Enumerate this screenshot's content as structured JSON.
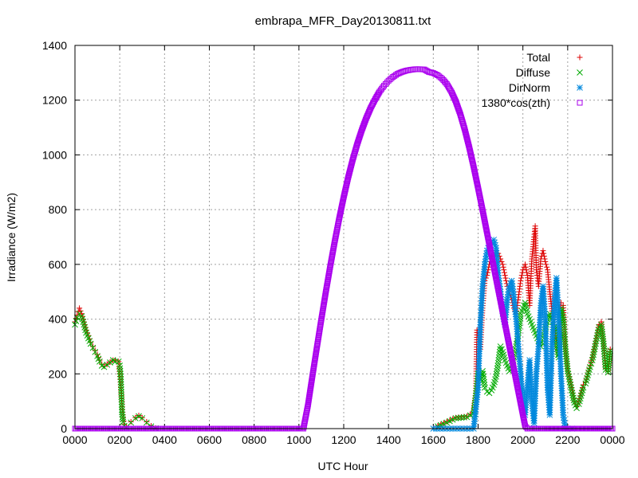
{
  "chart_data": {
    "type": "scatter",
    "title": "embrapa_MFR_Day20130811.txt",
    "xlabel": "UTC Hour",
    "ylabel": "Irradiance (W/m2)",
    "xlim": [
      0,
      24
    ],
    "ylim": [
      0,
      1400
    ],
    "x_ticks": [
      0,
      2,
      4,
      6,
      8,
      10,
      12,
      14,
      16,
      18,
      20,
      22,
      24
    ],
    "x_tick_labels": [
      "0000",
      "0200",
      "0400",
      "0600",
      "0800",
      "1000",
      "1200",
      "1400",
      "1600",
      "1800",
      "2000",
      "2200",
      "0000"
    ],
    "y_ticks": [
      0,
      200,
      400,
      600,
      800,
      1000,
      1200,
      1400
    ],
    "y_tick_labels": [
      "0",
      "200",
      "400",
      "600",
      "800",
      "1000",
      "1200",
      "1400"
    ],
    "grid": true,
    "legend_position": "top-right",
    "series": [
      {
        "name": "Total",
        "color": "#dd0000",
        "marker": "plus",
        "points": [
          [
            0.0,
            390
          ],
          [
            0.1,
            415
          ],
          [
            0.2,
            440
          ],
          [
            0.3,
            420
          ],
          [
            0.4,
            390
          ],
          [
            0.5,
            360
          ],
          [
            0.6,
            340
          ],
          [
            0.7,
            315
          ],
          [
            0.8,
            300
          ],
          [
            0.9,
            285
          ],
          [
            1.0,
            270
          ],
          [
            1.1,
            250
          ],
          [
            1.2,
            235
          ],
          [
            1.3,
            228
          ],
          [
            1.7,
            250
          ],
          [
            1.8,
            250
          ],
          [
            1.95,
            245
          ],
          [
            2.0,
            200
          ],
          [
            2.05,
            150
          ],
          [
            2.1,
            90
          ],
          [
            2.15,
            40
          ],
          [
            2.2,
            15
          ],
          [
            2.3,
            8
          ],
          [
            2.5,
            25
          ],
          [
            2.7,
            40
          ],
          [
            2.85,
            48
          ],
          [
            3.0,
            40
          ],
          [
            3.2,
            25
          ],
          [
            3.4,
            10
          ],
          [
            3.6,
            2
          ],
          [
            16.2,
            10
          ],
          [
            16.6,
            25
          ],
          [
            17.0,
            40
          ],
          [
            17.5,
            45
          ],
          [
            17.8,
            60
          ],
          [
            17.9,
            130
          ],
          [
            17.95,
            360
          ],
          [
            18.1,
            290
          ],
          [
            18.2,
            440
          ],
          [
            18.3,
            540
          ],
          [
            18.4,
            560
          ],
          [
            18.5,
            600
          ],
          [
            18.6,
            630
          ],
          [
            18.7,
            610
          ],
          [
            18.8,
            650
          ],
          [
            18.9,
            640
          ],
          [
            19.0,
            620
          ],
          [
            19.1,
            600
          ],
          [
            19.2,
            560
          ],
          [
            19.3,
            520
          ],
          [
            19.4,
            500
          ],
          [
            19.5,
            470
          ],
          [
            19.6,
            440
          ],
          [
            19.7,
            420
          ],
          [
            19.8,
            480
          ],
          [
            19.9,
            540
          ],
          [
            20.0,
            580
          ],
          [
            20.1,
            600
          ],
          [
            20.2,
            560
          ],
          [
            20.3,
            450
          ],
          [
            20.4,
            620
          ],
          [
            20.5,
            700
          ],
          [
            20.55,
            740
          ],
          [
            20.6,
            580
          ],
          [
            20.7,
            520
          ],
          [
            20.8,
            620
          ],
          [
            20.9,
            650
          ],
          [
            21.0,
            610
          ],
          [
            21.1,
            580
          ],
          [
            21.2,
            500
          ],
          [
            21.3,
            430
          ],
          [
            21.4,
            380
          ],
          [
            21.5,
            320
          ],
          [
            21.6,
            270
          ],
          [
            21.7,
            460
          ],
          [
            21.8,
            450
          ],
          [
            21.9,
            300
          ],
          [
            22.0,
            220
          ],
          [
            22.1,
            180
          ],
          [
            22.2,
            140
          ],
          [
            22.3,
            100
          ],
          [
            22.4,
            80
          ],
          [
            22.5,
            100
          ],
          [
            22.6,
            130
          ],
          [
            22.7,
            160
          ],
          [
            22.8,
            170
          ],
          [
            22.9,
            200
          ],
          [
            23.0,
            230
          ],
          [
            23.1,
            260
          ],
          [
            23.2,
            300
          ],
          [
            23.3,
            340
          ],
          [
            23.4,
            380
          ],
          [
            23.5,
            390
          ],
          [
            23.6,
            320
          ],
          [
            23.7,
            220
          ],
          [
            23.8,
            210
          ],
          [
            23.9,
            290
          ]
        ]
      },
      {
        "name": "Diffuse",
        "color": "#00aa00",
        "marker": "cross",
        "points": [
          [
            0.0,
            380
          ],
          [
            0.1,
            405
          ],
          [
            0.2,
            420
          ],
          [
            0.3,
            410
          ],
          [
            0.4,
            380
          ],
          [
            0.5,
            350
          ],
          [
            0.6,
            330
          ],
          [
            0.7,
            310
          ],
          [
            0.8,
            295
          ],
          [
            0.9,
            280
          ],
          [
            1.0,
            265
          ],
          [
            1.1,
            245
          ],
          [
            1.2,
            230
          ],
          [
            1.3,
            225
          ],
          [
            1.7,
            250
          ],
          [
            1.8,
            245
          ],
          [
            1.95,
            245
          ],
          [
            2.0,
            230
          ],
          [
            2.05,
            180
          ],
          [
            2.1,
            60
          ],
          [
            2.15,
            25
          ],
          [
            2.2,
            10
          ],
          [
            2.3,
            5
          ],
          [
            2.5,
            22
          ],
          [
            2.7,
            38
          ],
          [
            2.85,
            45
          ],
          [
            3.0,
            38
          ],
          [
            3.2,
            22
          ],
          [
            3.4,
            8
          ],
          [
            3.6,
            1
          ],
          [
            16.2,
            8
          ],
          [
            16.6,
            22
          ],
          [
            17.0,
            38
          ],
          [
            17.5,
            42
          ],
          [
            17.8,
            55
          ],
          [
            17.9,
            120
          ],
          [
            18.0,
            200
          ],
          [
            18.1,
            180
          ],
          [
            18.2,
            210
          ],
          [
            18.3,
            150
          ],
          [
            18.4,
            135
          ],
          [
            18.5,
            130
          ],
          [
            18.6,
            140
          ],
          [
            18.7,
            160
          ],
          [
            18.8,
            190
          ],
          [
            18.9,
            240
          ],
          [
            19.0,
            300
          ],
          [
            19.1,
            280
          ],
          [
            19.2,
            250
          ],
          [
            19.3,
            230
          ],
          [
            19.4,
            210
          ],
          [
            19.5,
            220
          ],
          [
            19.6,
            260
          ],
          [
            19.7,
            300
          ],
          [
            19.8,
            350
          ],
          [
            19.9,
            420
          ],
          [
            20.0,
            440
          ],
          [
            20.1,
            460
          ],
          [
            20.2,
            420
          ],
          [
            20.3,
            400
          ],
          [
            20.4,
            380
          ],
          [
            20.5,
            360
          ],
          [
            20.6,
            340
          ],
          [
            20.7,
            320
          ],
          [
            20.8,
            300
          ],
          [
            20.9,
            310
          ],
          [
            21.0,
            360
          ],
          [
            21.1,
            400
          ],
          [
            21.2,
            420
          ],
          [
            21.3,
            400
          ],
          [
            21.4,
            370
          ],
          [
            21.5,
            300
          ],
          [
            21.6,
            260
          ],
          [
            21.7,
            440
          ],
          [
            21.8,
            400
          ],
          [
            21.9,
            290
          ],
          [
            22.0,
            210
          ],
          [
            22.1,
            170
          ],
          [
            22.2,
            130
          ],
          [
            22.3,
            95
          ],
          [
            22.4,
            75
          ],
          [
            22.5,
            90
          ],
          [
            22.6,
            120
          ],
          [
            22.7,
            150
          ],
          [
            22.8,
            165
          ],
          [
            22.9,
            195
          ],
          [
            23.0,
            225
          ],
          [
            23.1,
            250
          ],
          [
            23.2,
            290
          ],
          [
            23.3,
            330
          ],
          [
            23.4,
            370
          ],
          [
            23.5,
            380
          ],
          [
            23.6,
            310
          ],
          [
            23.7,
            215
          ],
          [
            23.8,
            205
          ],
          [
            23.9,
            285
          ]
        ]
      },
      {
        "name": "DirNorm",
        "color": "#0088dd",
        "marker": "star",
        "points": [
          [
            16.0,
            0
          ],
          [
            16.3,
            0
          ],
          [
            16.6,
            0
          ],
          [
            16.9,
            0
          ],
          [
            17.2,
            0
          ],
          [
            17.5,
            0
          ],
          [
            17.8,
            0
          ],
          [
            18.0,
            150
          ],
          [
            18.1,
            380
          ],
          [
            18.15,
            450
          ],
          [
            18.2,
            520
          ],
          [
            18.3,
            600
          ],
          [
            18.4,
            650
          ],
          [
            18.5,
            670
          ],
          [
            18.6,
            680
          ],
          [
            18.7,
            690
          ],
          [
            18.8,
            660
          ],
          [
            18.9,
            560
          ],
          [
            19.0,
            500
          ],
          [
            19.1,
            420
          ],
          [
            19.2,
            380
          ],
          [
            19.3,
            470
          ],
          [
            19.4,
            520
          ],
          [
            19.5,
            540
          ],
          [
            19.6,
            480
          ],
          [
            19.7,
            400
          ],
          [
            19.8,
            300
          ],
          [
            19.9,
            200
          ],
          [
            20.0,
            100
          ],
          [
            20.1,
            50
          ],
          [
            20.2,
            150
          ],
          [
            20.3,
            250
          ],
          [
            20.4,
            100
          ],
          [
            20.5,
            20
          ],
          [
            20.6,
            200
          ],
          [
            20.7,
            300
          ],
          [
            20.8,
            450
          ],
          [
            20.9,
            520
          ],
          [
            21.0,
            400
          ],
          [
            21.1,
            150
          ],
          [
            21.2,
            50
          ],
          [
            21.3,
            300
          ],
          [
            21.4,
            450
          ],
          [
            21.5,
            550
          ],
          [
            21.6,
            400
          ],
          [
            21.7,
            200
          ],
          [
            21.8,
            50
          ],
          [
            21.9,
            0
          ],
          [
            22.0,
            0
          ],
          [
            22.2,
            0
          ]
        ]
      },
      {
        "name": "1380*cos(zth)",
        "color": "#aa00ee",
        "marker": "square",
        "points": [
          [
            0.0,
            0
          ],
          [
            2.0,
            0
          ],
          [
            4.0,
            0
          ],
          [
            6.0,
            0
          ],
          [
            8.0,
            0
          ],
          [
            10.0,
            0
          ],
          [
            10.2,
            0
          ],
          [
            10.4,
            84
          ],
          [
            10.6,
            191
          ],
          [
            10.8,
            296
          ],
          [
            11.0,
            399
          ],
          [
            11.2,
            499
          ],
          [
            11.4,
            594
          ],
          [
            11.6,
            684
          ],
          [
            11.8,
            768
          ],
          [
            12.0,
            846
          ],
          [
            12.2,
            918
          ],
          [
            12.4,
            982
          ],
          [
            12.6,
            1039
          ],
          [
            12.8,
            1089
          ],
          [
            13.0,
            1133
          ],
          [
            13.2,
            1171
          ],
          [
            13.4,
            1203
          ],
          [
            13.6,
            1231
          ],
          [
            13.8,
            1253
          ],
          [
            14.0,
            1271
          ],
          [
            14.2,
            1285
          ],
          [
            14.4,
            1296
          ],
          [
            14.6,
            1303
          ],
          [
            14.8,
            1308
          ],
          [
            15.0,
            1311
          ],
          [
            15.2,
            1313
          ],
          [
            15.4,
            1313
          ],
          [
            15.6,
            1312
          ],
          [
            15.8,
            1303
          ],
          [
            16.0,
            1299
          ],
          [
            16.2,
            1291
          ],
          [
            16.4,
            1278
          ],
          [
            16.6,
            1259
          ],
          [
            16.8,
            1232
          ],
          [
            17.0,
            1196
          ],
          [
            17.2,
            1150
          ],
          [
            17.4,
            1094
          ],
          [
            17.6,
            1029
          ],
          [
            17.8,
            957
          ],
          [
            18.0,
            879
          ],
          [
            18.2,
            798
          ],
          [
            18.4,
            715
          ],
          [
            18.6,
            632
          ],
          [
            18.8,
            549
          ],
          [
            19.0,
            466
          ],
          [
            19.2,
            383
          ],
          [
            19.4,
            300
          ],
          [
            19.6,
            217
          ],
          [
            19.8,
            134
          ],
          [
            20.0,
            51
          ],
          [
            20.1,
            10
          ],
          [
            20.2,
            0
          ],
          [
            21.0,
            0
          ],
          [
            22.0,
            0
          ],
          [
            23.0,
            0
          ],
          [
            24.0,
            0
          ]
        ]
      }
    ]
  }
}
